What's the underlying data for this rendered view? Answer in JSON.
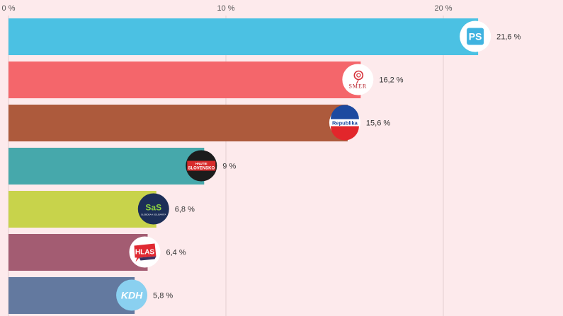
{
  "chart_data": {
    "type": "bar",
    "orientation": "horizontal",
    "title": "",
    "xlabel": "",
    "ylabel": "",
    "xlim": [
      0,
      25
    ],
    "grid": true,
    "legend": "none",
    "x_ticks": [
      {
        "value": 0,
        "label": "0 %"
      },
      {
        "value": 10,
        "label": "10 %"
      },
      {
        "value": 20,
        "label": "20 %"
      }
    ],
    "bars": [
      {
        "party": "PS",
        "value": 21.6,
        "label": "21,6 %",
        "color": "#4bc1e3",
        "logo": "ps-logo-icon"
      },
      {
        "party": "SMER",
        "value": 16.2,
        "label": "16,2 %",
        "color": "#f4666b",
        "logo": "smer-rose-logo-icon"
      },
      {
        "party": "Republika",
        "value": 15.6,
        "label": "15,6 %",
        "color": "#ad5a3c",
        "logo": "republika-logo-icon"
      },
      {
        "party": "Slovensko",
        "value": 9,
        "label": "9 %",
        "color": "#46a8ab",
        "logo": "slovensko-logo-icon"
      },
      {
        "party": "SaS",
        "value": 6.8,
        "label": "6,8 %",
        "color": "#c8d34b",
        "logo": "sas-logo-icon"
      },
      {
        "party": "HLAS",
        "value": 6.4,
        "label": "6,4 %",
        "color": "#a35c72",
        "logo": "hlas-logo-icon"
      },
      {
        "party": "KDH",
        "value": 5.8,
        "label": "5,8 %",
        "color": "#63799f",
        "logo": "kdh-logo-icon"
      }
    ]
  },
  "logos": {
    "ps": "PS",
    "smer": "SMER",
    "republika": "Republika",
    "slovensko_top": "HNUTIE",
    "slovensko": "SLOVENSKO",
    "sas": "SaS",
    "sas_sub": "SLOBODA A SOLIDARITA",
    "hlas": "HLAS",
    "kdh": "KDH"
  }
}
